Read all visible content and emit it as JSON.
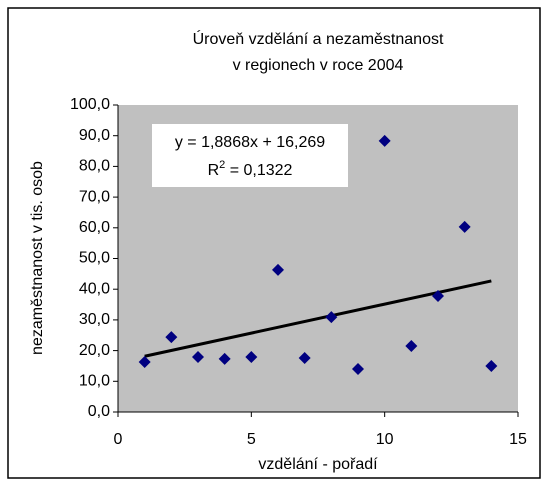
{
  "chart_data": {
    "type": "scatter",
    "title": [
      "Úroveň vzdělání a nezaměstnanost",
      "v regionech v roce 2004"
    ],
    "x_label": "vzdělání - pořadí",
    "y_label": "nezaměstnanost v tis. osob",
    "x": [
      1,
      2,
      3,
      4,
      5,
      6,
      7,
      8,
      9,
      10,
      11,
      12,
      13,
      14
    ],
    "values": [
      16.3,
      24.4,
      17.9,
      17.3,
      17.9,
      46.3,
      17.6,
      30.9,
      14.0,
      88.3,
      21.5,
      37.8,
      60.3,
      15.0
    ],
    "color": "#000080",
    "plot_background": "#c0c0c0",
    "xlim": [
      0,
      15
    ],
    "xticks": [
      0,
      5,
      10,
      15
    ],
    "ylim": [
      0,
      100
    ],
    "yticks": [
      {
        "value": 0,
        "label": "0,0"
      },
      {
        "value": 10,
        "label": "10,0"
      },
      {
        "value": 20,
        "label": "20,0"
      },
      {
        "value": 30,
        "label": "30,0"
      },
      {
        "value": 40,
        "label": "40,0"
      },
      {
        "value": 50,
        "label": "50,0"
      },
      {
        "value": 60,
        "label": "60,0"
      },
      {
        "value": 70,
        "label": "70,0"
      },
      {
        "value": 80,
        "label": "80,0"
      },
      {
        "value": 90,
        "label": "90,0"
      },
      {
        "value": 100,
        "label": "100,0"
      }
    ],
    "trendline": {
      "slope": 1.8868,
      "intercept": 16.269,
      "color": "#000000",
      "equation": "y = 1,8868x + 16,269",
      "r2_label": [
        "R",
        "2",
        " = 0,1322"
      ]
    }
  }
}
